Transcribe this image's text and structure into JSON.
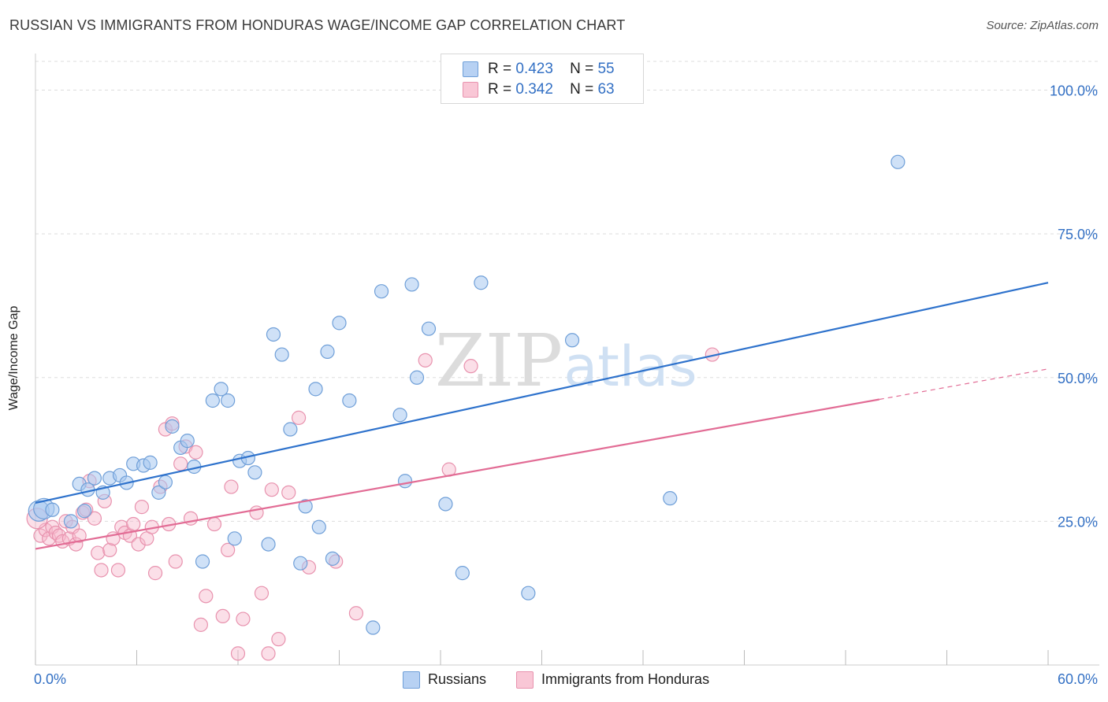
{
  "title": "RUSSIAN VS IMMIGRANTS FROM HONDURAS WAGE/INCOME GAP CORRELATION CHART",
  "source": "Source: ZipAtlas.com",
  "watermark": {
    "zip": "ZIP",
    "atlas": "atlas"
  },
  "colors": {
    "blue_fill": "#a8c8f0",
    "blue_stroke": "#6f9fd8",
    "blue_line": "#2e72cc",
    "pink_fill": "#f7b8cc",
    "pink_stroke": "#e892ae",
    "pink_line": "#e26c95",
    "axis_text": "#3370c4",
    "grid": "#dddddd"
  },
  "legend": {
    "r_label": "R =",
    "n_label": "N =",
    "blue": {
      "r": "0.423",
      "n": "55"
    },
    "pink": {
      "r": "0.342",
      "n": "63"
    }
  },
  "chart_data": {
    "type": "scatter",
    "title": "RUSSIAN VS IMMIGRANTS FROM HONDURAS WAGE/INCOME GAP CORRELATION CHART",
    "xlabel": "",
    "ylabel": "Wage/Income Gap",
    "xlim": [
      0,
      60
    ],
    "ylim": [
      0,
      105
    ],
    "x_tick_labels": [
      "0.0%",
      "60.0%"
    ],
    "y_ticks": [
      25,
      50,
      75,
      100
    ],
    "y_tick_labels": [
      "25.0%",
      "50.0%",
      "75.0%",
      "100.0%"
    ],
    "series": [
      {
        "name": "Russians",
        "color": "blue",
        "r": 0.423,
        "n": 55,
        "trend": {
          "x0": 0,
          "y0": 28.2,
          "x1": 60,
          "y1": 66.5
        },
        "points": [
          [
            0.2,
            26.8
          ],
          [
            0.5,
            27.2
          ],
          [
            1.0,
            27.0
          ],
          [
            2.1,
            25.0
          ],
          [
            2.6,
            31.5
          ],
          [
            3.1,
            30.5
          ],
          [
            3.5,
            32.5
          ],
          [
            4.0,
            30.0
          ],
          [
            4.4,
            32.5
          ],
          [
            5.0,
            33.0
          ],
          [
            5.4,
            31.7
          ],
          [
            5.8,
            35.0
          ],
          [
            6.4,
            34.7
          ],
          [
            6.8,
            35.2
          ],
          [
            7.3,
            30.0
          ],
          [
            7.7,
            31.8
          ],
          [
            8.1,
            41.5
          ],
          [
            8.6,
            37.8
          ],
          [
            9.0,
            39.0
          ],
          [
            9.4,
            34.5
          ],
          [
            9.9,
            18.0
          ],
          [
            10.5,
            46.0
          ],
          [
            11.0,
            48.0
          ],
          [
            11.4,
            46.0
          ],
          [
            11.8,
            22.0
          ],
          [
            12.1,
            35.5
          ],
          [
            12.6,
            36.0
          ],
          [
            13.0,
            33.5
          ],
          [
            13.8,
            21.0
          ],
          [
            14.1,
            57.5
          ],
          [
            14.6,
            54.0
          ],
          [
            15.1,
            41.0
          ],
          [
            15.7,
            17.7
          ],
          [
            16.0,
            27.6
          ],
          [
            16.6,
            48.0
          ],
          [
            16.8,
            24.0
          ],
          [
            17.3,
            54.5
          ],
          [
            17.6,
            18.5
          ],
          [
            18.0,
            59.5
          ],
          [
            18.6,
            46.0
          ],
          [
            20.0,
            6.5
          ],
          [
            20.5,
            65.0
          ],
          [
            21.6,
            43.5
          ],
          [
            21.9,
            32.0
          ],
          [
            22.3,
            66.2
          ],
          [
            22.6,
            50.0
          ],
          [
            23.3,
            58.5
          ],
          [
            24.3,
            28.0
          ],
          [
            25.3,
            16.0
          ],
          [
            26.4,
            66.5
          ],
          [
            29.2,
            12.5
          ],
          [
            31.8,
            56.5
          ],
          [
            37.6,
            29.0
          ],
          [
            51.1,
            87.5
          ],
          [
            2.9,
            26.8
          ]
        ]
      },
      {
        "name": "Immigrants from Honduras",
        "color": "pink",
        "r": 0.342,
        "n": 63,
        "trend": {
          "x0": 0,
          "y0": 20.2,
          "x1": 50,
          "y1": 46.2,
          "dash_x1": 60,
          "dash_y1": 51.5
        },
        "points": [
          [
            0.3,
            22.5
          ],
          [
            0.6,
            23.5
          ],
          [
            0.8,
            22.0
          ],
          [
            1.0,
            24.0
          ],
          [
            1.2,
            23.0
          ],
          [
            1.4,
            22.5
          ],
          [
            1.6,
            21.5
          ],
          [
            1.8,
            25.0
          ],
          [
            2.0,
            22.0
          ],
          [
            2.2,
            24.0
          ],
          [
            2.4,
            21.0
          ],
          [
            2.6,
            22.5
          ],
          [
            2.8,
            26.5
          ],
          [
            3.0,
            27.0
          ],
          [
            3.2,
            32.0
          ],
          [
            3.5,
            25.5
          ],
          [
            3.7,
            19.5
          ],
          [
            3.9,
            16.5
          ],
          [
            4.1,
            28.5
          ],
          [
            4.4,
            20.0
          ],
          [
            4.6,
            22.0
          ],
          [
            4.9,
            16.5
          ],
          [
            5.1,
            24.0
          ],
          [
            5.3,
            23.0
          ],
          [
            5.6,
            22.5
          ],
          [
            5.8,
            24.5
          ],
          [
            6.1,
            21.0
          ],
          [
            6.3,
            27.5
          ],
          [
            6.6,
            22.0
          ],
          [
            6.9,
            24.0
          ],
          [
            7.1,
            16.0
          ],
          [
            7.4,
            31.0
          ],
          [
            7.7,
            41.0
          ],
          [
            7.9,
            24.5
          ],
          [
            8.1,
            42.0
          ],
          [
            8.3,
            18.0
          ],
          [
            8.6,
            35.0
          ],
          [
            8.9,
            38.0
          ],
          [
            9.2,
            25.5
          ],
          [
            9.5,
            37.0
          ],
          [
            9.8,
            7.0
          ],
          [
            10.1,
            12.0
          ],
          [
            10.6,
            24.5
          ],
          [
            11.1,
            8.5
          ],
          [
            11.4,
            20.0
          ],
          [
            11.6,
            31.0
          ],
          [
            12.0,
            2.0
          ],
          [
            12.3,
            8.0
          ],
          [
            13.1,
            26.5
          ],
          [
            13.4,
            12.5
          ],
          [
            13.8,
            2.0
          ],
          [
            14.0,
            30.5
          ],
          [
            14.4,
            4.5
          ],
          [
            15.0,
            30.0
          ],
          [
            15.6,
            43.0
          ],
          [
            16.2,
            17.0
          ],
          [
            17.8,
            18.0
          ],
          [
            19.0,
            9.0
          ],
          [
            23.1,
            53.0
          ],
          [
            24.5,
            34.0
          ],
          [
            25.8,
            52.0
          ],
          [
            40.1,
            54.0
          ],
          [
            0.1,
            25.5
          ]
        ]
      }
    ],
    "legend_entries": [
      "Russians",
      "Immigrants from Honduras"
    ]
  }
}
